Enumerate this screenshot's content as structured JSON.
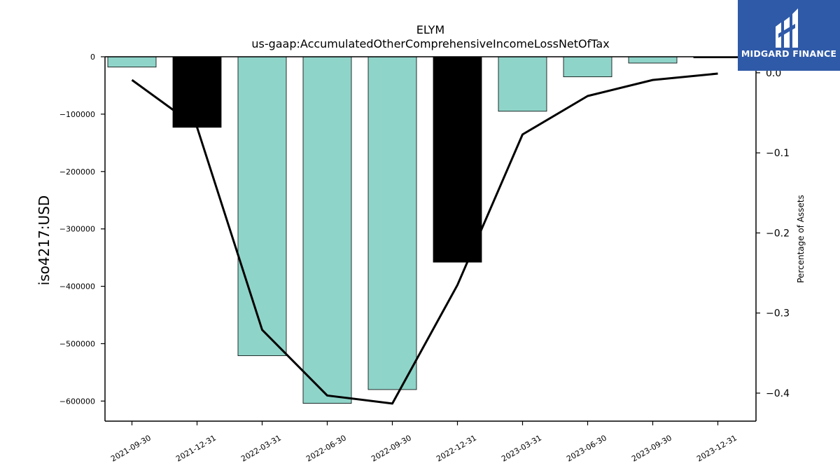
{
  "chart_data": {
    "type": "bar",
    "title": "ELYM",
    "subtitle": "us-gaap:AccumulatedOtherComprehensiveIncomeLossNetOfTax",
    "ylabel": "iso4217:USD",
    "ylabel_right": "Percentage of Assets",
    "categories": [
      "2021-09-30",
      "2021-12-31",
      "2022-03-31",
      "2022-06-30",
      "2022-09-30",
      "2022-12-31",
      "2023-03-31",
      "2023-06-30",
      "2023-09-30",
      "2023-12-31"
    ],
    "values": [
      -18000,
      -123000,
      -521000,
      -604000,
      -580000,
      -358000,
      -95000,
      -35000,
      -11000,
      -2000
    ],
    "bar_colors": [
      "#8fd4c9",
      "#000000",
      "#8fd4c9",
      "#8fd4c9",
      "#8fd4c9",
      "#000000",
      "#8fd4c9",
      "#8fd4c9",
      "#8fd4c9",
      "#000000"
    ],
    "ylim": [
      -635000,
      0
    ],
    "yticks": [
      0,
      -100000,
      -200000,
      -300000,
      -400000,
      -500000,
      -600000
    ],
    "ytick_labels": [
      "0",
      "−100000",
      "−200000",
      "−300000",
      "−400000",
      "−500000",
      "−600000"
    ],
    "line_series": {
      "values": [
        -0.009,
        -0.068,
        -0.321,
        -0.403,
        -0.413,
        -0.265,
        -0.077,
        -0.029,
        -0.009,
        -0.001
      ],
      "color": "#000000"
    },
    "y2lim": [
      -0.435,
      0.02
    ],
    "y2ticks": [
      0.0,
      -0.1,
      -0.2,
      -0.3,
      -0.4
    ],
    "y2tick_labels": [
      "0.0",
      "−0.1",
      "−0.2",
      "−0.3",
      "−0.4"
    ],
    "grid": false
  },
  "logo": {
    "text": "MIDGARD FINANCE",
    "background": "#2f5aa8"
  }
}
